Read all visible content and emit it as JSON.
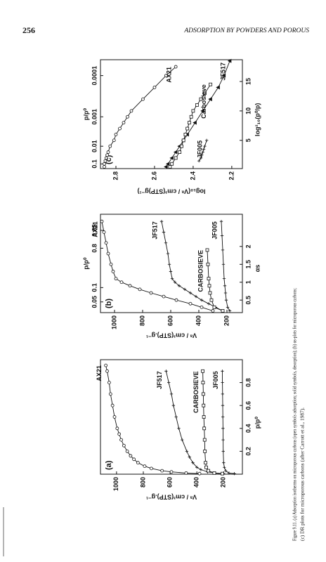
{
  "header": {
    "page_number": "256",
    "running_title": "ADSORPTION BY POWDERS AND POROUS"
  },
  "chart_data": [
    {
      "type": "line",
      "panel_label": "(a)",
      "x_label": "p/p⁰",
      "y_label": "Vᵃ / cm³(STP).g⁻¹",
      "xlim": [
        0,
        1
      ],
      "xticks": [
        0.2,
        0.4,
        0.6,
        0.8
      ],
      "ylim": [
        60,
        1120
      ],
      "yticks": [
        200,
        400,
        600,
        800,
        1000
      ],
      "series": [
        {
          "name": "AX21",
          "color": "#111111",
          "marker": "circle",
          "x": [
            0.005,
            0.01,
            0.02,
            0.03,
            0.05,
            0.07,
            0.1,
            0.13,
            0.16,
            0.2,
            0.25,
            0.3,
            0.35,
            0.4,
            0.5,
            0.6,
            0.7,
            0.8,
            0.9,
            0.95
          ],
          "values": [
            380,
            480,
            590,
            660,
            740,
            790,
            840,
            870,
            895,
            920,
            945,
            965,
            980,
            995,
            1015,
            1030,
            1045,
            1055,
            1070,
            1080
          ]
        },
        {
          "name": "JF517",
          "color": "#111111",
          "marker": "plus",
          "x": [
            0.005,
            0.01,
            0.02,
            0.04,
            0.06,
            0.1,
            0.15,
            0.2,
            0.3,
            0.4,
            0.5,
            0.6,
            0.7,
            0.8,
            0.9
          ],
          "values": [
            200,
            260,
            320,
            370,
            400,
            430,
            455,
            475,
            510,
            535,
            555,
            575,
            590,
            610,
            630
          ]
        },
        {
          "name": "CARBOSIEVE",
          "color": "#111111",
          "marker": "square",
          "x": [
            0.005,
            0.01,
            0.03,
            0.06,
            0.1,
            0.2,
            0.3,
            0.4,
            0.5,
            0.6,
            0.7,
            0.8,
            0.9
          ],
          "values": [
            210,
            270,
            315,
            330,
            335,
            340,
            342,
            345,
            348,
            350,
            352,
            354,
            356
          ]
        },
        {
          "name": "JF005",
          "color": "#111111",
          "marker": "plus",
          "x": [
            0.005,
            0.01,
            0.03,
            0.06,
            0.1,
            0.2,
            0.3,
            0.4,
            0.5,
            0.6,
            0.7,
            0.8,
            0.9
          ],
          "values": [
            120,
            160,
            185,
            195,
            200,
            203,
            204,
            205,
            206,
            207,
            208,
            209,
            210
          ]
        }
      ]
    },
    {
      "type": "line",
      "panel_label": "(b)",
      "x_label": "αs",
      "x2_label": "p/p⁰",
      "y_label": "Vᵃ / cm³(STP).g⁻¹",
      "xlim": [
        0.15,
        2.9
      ],
      "xticks": [
        0.5,
        1,
        1.5,
        2
      ],
      "x2ticks": [
        {
          "value": 0.45,
          "label": "0.05"
        },
        {
          "value": 0.85,
          "label": "0.1"
        },
        {
          "value": 1.95,
          "label": "0.8"
        },
        {
          "value": 2.45,
          "label": "0.85"
        }
      ],
      "ylim": [
        90,
        1100
      ],
      "yticks": [
        200,
        400,
        600,
        800,
        1000
      ],
      "series": [
        {
          "name": "AX21",
          "color": "#111111",
          "marker": "circle",
          "x": [
            0.2,
            0.3,
            0.4,
            0.5,
            0.6,
            0.7,
            0.8,
            0.9,
            1.0,
            1.1,
            1.3,
            1.5,
            1.8,
            2.1,
            2.4,
            2.7
          ],
          "values": [
            300,
            380,
            460,
            560,
            650,
            740,
            820,
            890,
            950,
            990,
            1010,
            1025,
            1045,
            1060,
            1075,
            1090
          ]
        },
        {
          "name": "JF517",
          "color": "#111111",
          "marker": "plus",
          "x": [
            0.2,
            0.3,
            0.4,
            0.5,
            0.6,
            0.7,
            0.8,
            0.9,
            1.0,
            1.1,
            1.3,
            1.5,
            1.8,
            2.1,
            2.4,
            2.7
          ],
          "values": [
            230,
            280,
            330,
            380,
            420,
            460,
            500,
            540,
            570,
            590,
            600,
            610,
            620,
            635,
            650,
            665
          ]
        },
        {
          "name": "CARBOSIEVE",
          "color": "#111111",
          "marker": "square",
          "x": [
            0.2,
            0.3,
            0.5,
            0.7,
            0.9,
            1.1,
            1.5,
            1.9
          ],
          "values": [
            230,
            290,
            310,
            320,
            325,
            330,
            335,
            340
          ]
        },
        {
          "name": "JF005",
          "color": "#111111",
          "marker": "plus",
          "x": [
            0.2,
            0.3,
            0.5,
            0.7,
            0.9,
            1.1,
            1.5,
            1.9,
            2.3,
            2.7
          ],
          "values": [
            180,
            195,
            205,
            210,
            215,
            220,
            225,
            230,
            235,
            240
          ]
        }
      ]
    },
    {
      "type": "line",
      "panel_label": "(c)",
      "x_label": "log²₁₀(p⁰/p)",
      "x2_label": "p/p⁰",
      "y_label": "log₁₀(Vᵃ / cm³(STP)g⁻¹)",
      "xlim": [
        0.2,
        18.7
      ],
      "xticks": [
        5,
        10,
        15
      ],
      "x2ticks": [
        {
          "value": 1,
          "label": "0.1"
        },
        {
          "value": 4,
          "label": "0.01"
        },
        {
          "value": 9,
          "label": "0.001"
        },
        {
          "value": 16,
          "label": "0.0001"
        }
      ],
      "ylim": [
        2.145,
        2.88
      ],
      "yticks": [
        2.2,
        2.4,
        2.6,
        2.8
      ],
      "series": [
        {
          "name": "AX21",
          "color": "#111111",
          "marker": "circle",
          "x": [
            0.5,
            1,
            1.5,
            2,
            2.5,
            3,
            4,
            5,
            6,
            7,
            8,
            9,
            10,
            12,
            14,
            16,
            17.5
          ],
          "values": [
            2.86,
            2.86,
            2.855,
            2.85,
            2.845,
            2.84,
            2.83,
            2.81,
            2.8,
            2.78,
            2.76,
            2.74,
            2.72,
            2.66,
            2.6,
            2.54,
            2.49
          ]
        },
        {
          "name": "JF517",
          "color": "#111111",
          "marker": "triangle",
          "x": [
            0.5,
            1,
            2,
            3,
            4,
            5,
            6,
            8,
            10,
            12,
            14,
            16,
            18.5
          ],
          "values": [
            2.54,
            2.53,
            2.51,
            2.49,
            2.47,
            2.45,
            2.43,
            2.39,
            2.35,
            2.31,
            2.27,
            2.24,
            2.21
          ]
        },
        {
          "name": "Carbosieve",
          "color": "#111111",
          "marker": "square",
          "x": [
            0.5,
            1,
            2,
            3,
            4,
            5,
            6,
            7,
            8,
            9,
            10,
            11,
            12,
            13,
            14.5
          ],
          "values": [
            2.52,
            2.51,
            2.49,
            2.47,
            2.46,
            2.45,
            2.44,
            2.43,
            2.42,
            2.41,
            2.4,
            2.38,
            2.36,
            2.34,
            2.31
          ]
        },
        {
          "name": "JF005",
          "color": "#111111",
          "marker": "plus",
          "x": [
            1.5,
            2,
            2.5,
            3,
            3.5,
            4,
            5
          ],
          "values": [
            2.37,
            2.36,
            2.355,
            2.35,
            2.345,
            2.34,
            2.33
          ]
        }
      ]
    }
  ],
  "caption": {
    "lines": [
      "Figure 9.11. (a) Adsorption isotherms on microporous carbons (open symbols adsorption; solid symbols, desorption); (b) αs-plots for microporous carbons;",
      "(c) DR plots for microporous carbons (after Carrott et al., 1987)."
    ]
  }
}
